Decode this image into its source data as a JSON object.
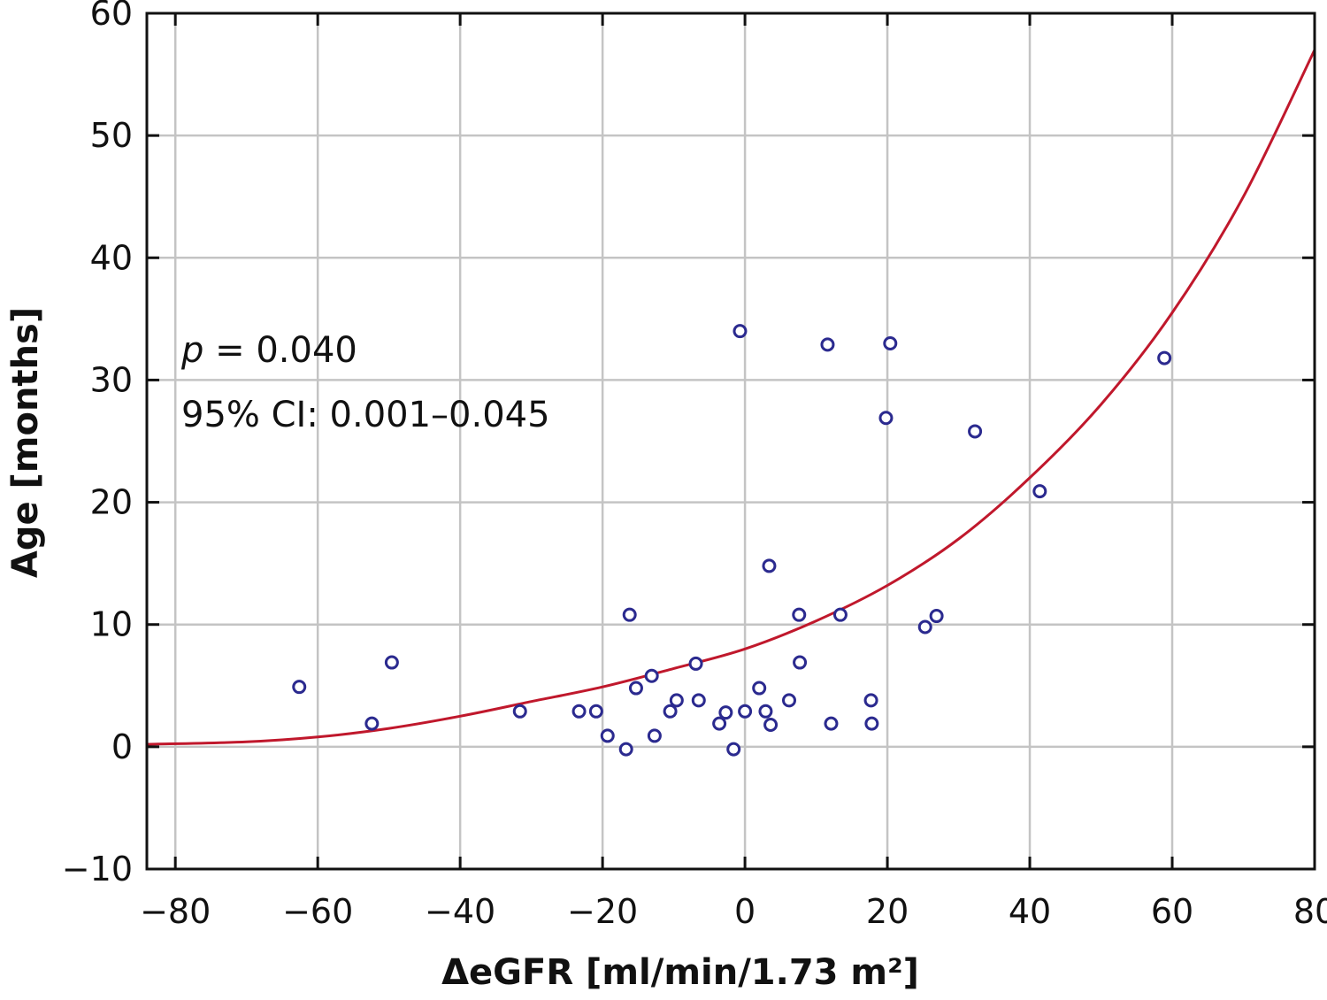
{
  "chart_data": {
    "type": "scatter",
    "xlabel": "ΔeGFR [ml/min/1.73 m²]",
    "ylabel": "Age [months]",
    "xlim": [
      -84,
      80
    ],
    "ylim": [
      -10,
      60
    ],
    "x_ticks": [
      "−80",
      "−60",
      "−40",
      "−20",
      "0",
      "20",
      "40",
      "60",
      "80"
    ],
    "y_ticks": [
      "−10",
      "0",
      "10",
      "20",
      "30",
      "40",
      "50",
      "60"
    ],
    "grid": true,
    "points": [
      {
        "x": -62.6,
        "y": 4.9
      },
      {
        "x": -52.4,
        "y": 1.9
      },
      {
        "x": -49.6,
        "y": 6.9
      },
      {
        "x": -31.6,
        "y": 2.9
      },
      {
        "x": -23.3,
        "y": 2.9
      },
      {
        "x": -20.9,
        "y": 2.9
      },
      {
        "x": -19.3,
        "y": 0.9
      },
      {
        "x": -16.7,
        "y": -0.2
      },
      {
        "x": -16.2,
        "y": 10.8
      },
      {
        "x": -15.3,
        "y": 4.8
      },
      {
        "x": -13.1,
        "y": 5.8
      },
      {
        "x": -12.7,
        "y": 0.9
      },
      {
        "x": -10.5,
        "y": 2.9
      },
      {
        "x": -9.6,
        "y": 3.8
      },
      {
        "x": -6.9,
        "y": 6.8
      },
      {
        "x": -6.5,
        "y": 3.8
      },
      {
        "x": -3.6,
        "y": 1.9
      },
      {
        "x": -2.7,
        "y": 2.8
      },
      {
        "x": -1.6,
        "y": -0.2
      },
      {
        "x": -0.7,
        "y": 34.0
      },
      {
        "x": 0.0,
        "y": 2.9
      },
      {
        "x": 2.0,
        "y": 4.8
      },
      {
        "x": 2.9,
        "y": 2.9
      },
      {
        "x": 3.4,
        "y": 14.8
      },
      {
        "x": 3.6,
        "y": 1.8
      },
      {
        "x": 6.2,
        "y": 3.8
      },
      {
        "x": 7.6,
        "y": 10.8
      },
      {
        "x": 7.7,
        "y": 6.9
      },
      {
        "x": 11.6,
        "y": 32.9
      },
      {
        "x": 12.1,
        "y": 1.9
      },
      {
        "x": 13.4,
        "y": 10.8
      },
      {
        "x": 17.7,
        "y": 3.8
      },
      {
        "x": 17.8,
        "y": 1.9
      },
      {
        "x": 19.8,
        "y": 26.9
      },
      {
        "x": 20.4,
        "y": 33.0
      },
      {
        "x": 25.3,
        "y": 9.8
      },
      {
        "x": 26.9,
        "y": 10.7
      },
      {
        "x": 32.3,
        "y": 25.8
      },
      {
        "x": 41.4,
        "y": 20.9
      },
      {
        "x": 58.9,
        "y": 31.8
      }
    ],
    "fit_curve": {
      "type": "exponential",
      "x": [
        -84,
        -70,
        -60,
        -50,
        -40,
        -30,
        -20,
        -10,
        0,
        10,
        20,
        30,
        40,
        50,
        60,
        70,
        80
      ],
      "y": [
        0.2,
        0.4,
        0.8,
        1.5,
        2.5,
        3.7,
        4.9,
        6.4,
        8.0,
        10.3,
        13.2,
        17.0,
        22.0,
        28.0,
        35.5,
        45.0,
        57.0
      ]
    },
    "annotations": [
      "p",
      " = 0.040",
      "95% CI: 0.001–0.045"
    ],
    "colors": {
      "points": "#2b2a8f",
      "fit_curve": "#c0182c",
      "grid": "#c4c4c4",
      "frame": "#111111"
    }
  }
}
